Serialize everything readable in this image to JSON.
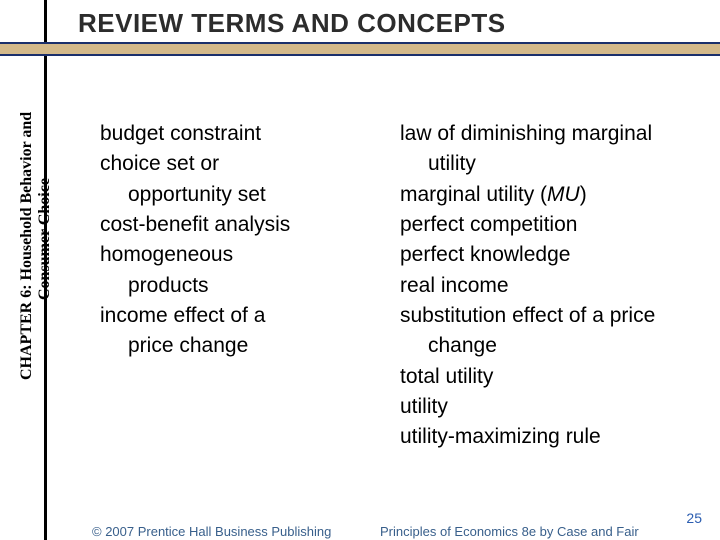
{
  "header": {
    "title": "REVIEW TERMS AND CONCEPTS"
  },
  "sidebar": {
    "chapter": "CHAPTER 6:  Household Behavior and",
    "subtitle": "Consumer Choice"
  },
  "columns": {
    "left": [
      {
        "text": "budget constraint",
        "indent": false
      },
      {
        "text": "choice set or",
        "indent": false
      },
      {
        "text": "opportunity set",
        "indent": true
      },
      {
        "text": "cost-benefit analysis",
        "indent": false
      },
      {
        "text": "homogeneous",
        "indent": false
      },
      {
        "text": "products",
        "indent": true
      },
      {
        "text": "income effect of a",
        "indent": false
      },
      {
        "text": "price change",
        "indent": true
      }
    ],
    "right": [
      {
        "text": "law of diminishing marginal",
        "indent": false
      },
      {
        "text": "utility",
        "indent": true
      },
      {
        "text": "marginal utility (",
        "suffix_em": "MU",
        "tail": ")",
        "indent": false
      },
      {
        "text": "perfect competition",
        "indent": false
      },
      {
        "text": "perfect knowledge",
        "indent": false
      },
      {
        "text": "real income",
        "indent": false
      },
      {
        "text": "substitution effect of a price",
        "indent": false
      },
      {
        "text": "change",
        "indent": true
      },
      {
        "text": "total utility",
        "indent": false
      },
      {
        "text": "utility",
        "indent": false
      },
      {
        "text": "utility-maximizing rule",
        "indent": false
      }
    ]
  },
  "footer": {
    "left": "© 2007 Prentice Hall Business Publishing",
    "right": "Principles of Economics 8e by Case and Fair",
    "page": "25"
  },
  "colors": {
    "bar_bg": "#d3b98a",
    "bar_border": "#1a2f6b",
    "footer_text": "#385f8b",
    "page_num": "#2b5db0"
  }
}
